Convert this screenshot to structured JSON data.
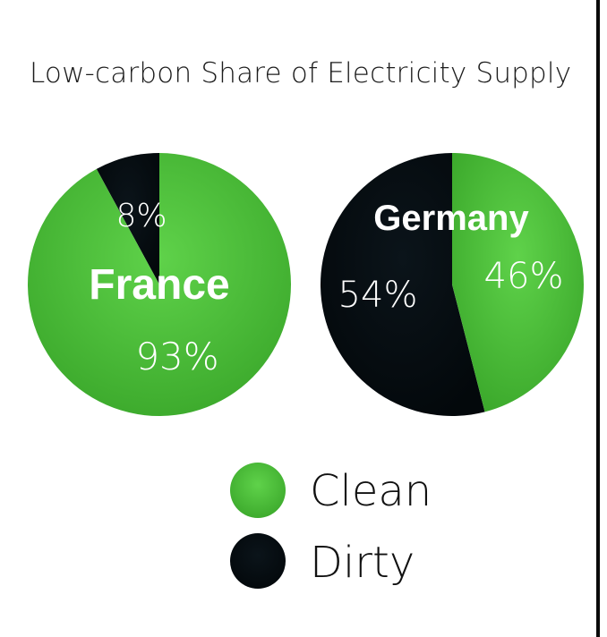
{
  "chart_data": {
    "type": "pie",
    "title": "Low-carbon Share of Electricity Supply",
    "legend": {
      "placement": "bottom",
      "items": [
        {
          "label": "Clean",
          "color": "#4cc13a"
        },
        {
          "label": "Dirty",
          "color": "#060d12"
        }
      ]
    },
    "pies": [
      {
        "name": "France",
        "slices": [
          {
            "category": "Clean",
            "value": 93,
            "label": "93%"
          },
          {
            "category": "Dirty",
            "value": 8,
            "label": "8%"
          }
        ]
      },
      {
        "name": "Germany",
        "slices": [
          {
            "category": "Clean",
            "value": 46,
            "label": "46%"
          },
          {
            "category": "Dirty",
            "value": 54,
            "label": "54%"
          }
        ]
      }
    ]
  }
}
